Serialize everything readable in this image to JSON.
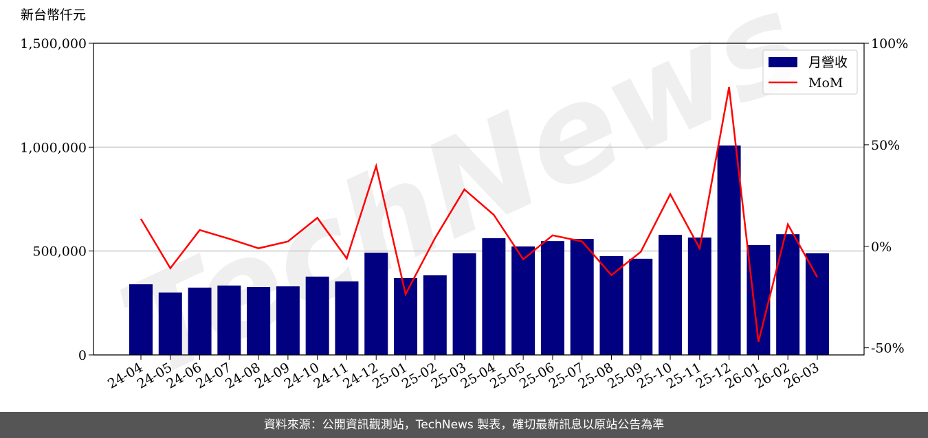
{
  "chart_data": {
    "type": "bar",
    "y_label": "新台幣仟元",
    "watermark": "TechNews",
    "categories": [
      "24-04",
      "24-05",
      "24-06",
      "24-07",
      "24-08",
      "24-09",
      "24-10",
      "24-11",
      "24-12",
      "25-01",
      "25-02",
      "25-03",
      "25-04",
      "25-05",
      "25-06",
      "25-07",
      "25-08",
      "25-09",
      "25-10",
      "25-11",
      "25-12",
      "26-01",
      "26-02",
      "26-03"
    ],
    "series": [
      {
        "name": "月營收",
        "color": "#000080",
        "type": "bar",
        "values": [
          340000,
          300000,
          324000,
          334000,
          327000,
          330000,
          377000,
          354000,
          492000,
          370000,
          383000,
          489000,
          562000,
          522000,
          548000,
          558000,
          476000,
          463000,
          578000,
          565000,
          1008000,
          529000,
          581000,
          489000
        ]
      },
      {
        "name": "MoM",
        "color": "#ff0000",
        "type": "line",
        "axis": "y2",
        "values": [
          13.5,
          -10.8,
          8,
          3.7,
          -1,
          2.4,
          14,
          -6,
          39.5,
          -23.6,
          4,
          28,
          15.5,
          -6.4,
          5.4,
          2.4,
          -14.2,
          -2.7,
          25.7,
          -1,
          78.4,
          -47,
          10.8,
          -15.2
        ]
      }
    ],
    "ylim": [
      0,
      1500000
    ],
    "yticks": [
      0,
      {
        "value": 500000,
        "label": "500,000"
      },
      {
        "value": 1000000,
        "label": "1,000,000"
      },
      {
        "value": 1500000,
        "label": "1,500,000"
      }
    ],
    "y2lim": [
      -53.5,
      100
    ],
    "y2ticks": [
      {
        "value": -50,
        "label": "-50%"
      },
      {
        "value": 0,
        "label": "0%"
      },
      {
        "value": 50,
        "label": "50%"
      },
      {
        "value": 100,
        "label": "100%"
      }
    ],
    "grid": true,
    "legend": "upper right"
  },
  "footer": {
    "text": "資料來源：公開資訊觀測站，TechNews 製表，確切最新訊息以原站公告為準"
  }
}
